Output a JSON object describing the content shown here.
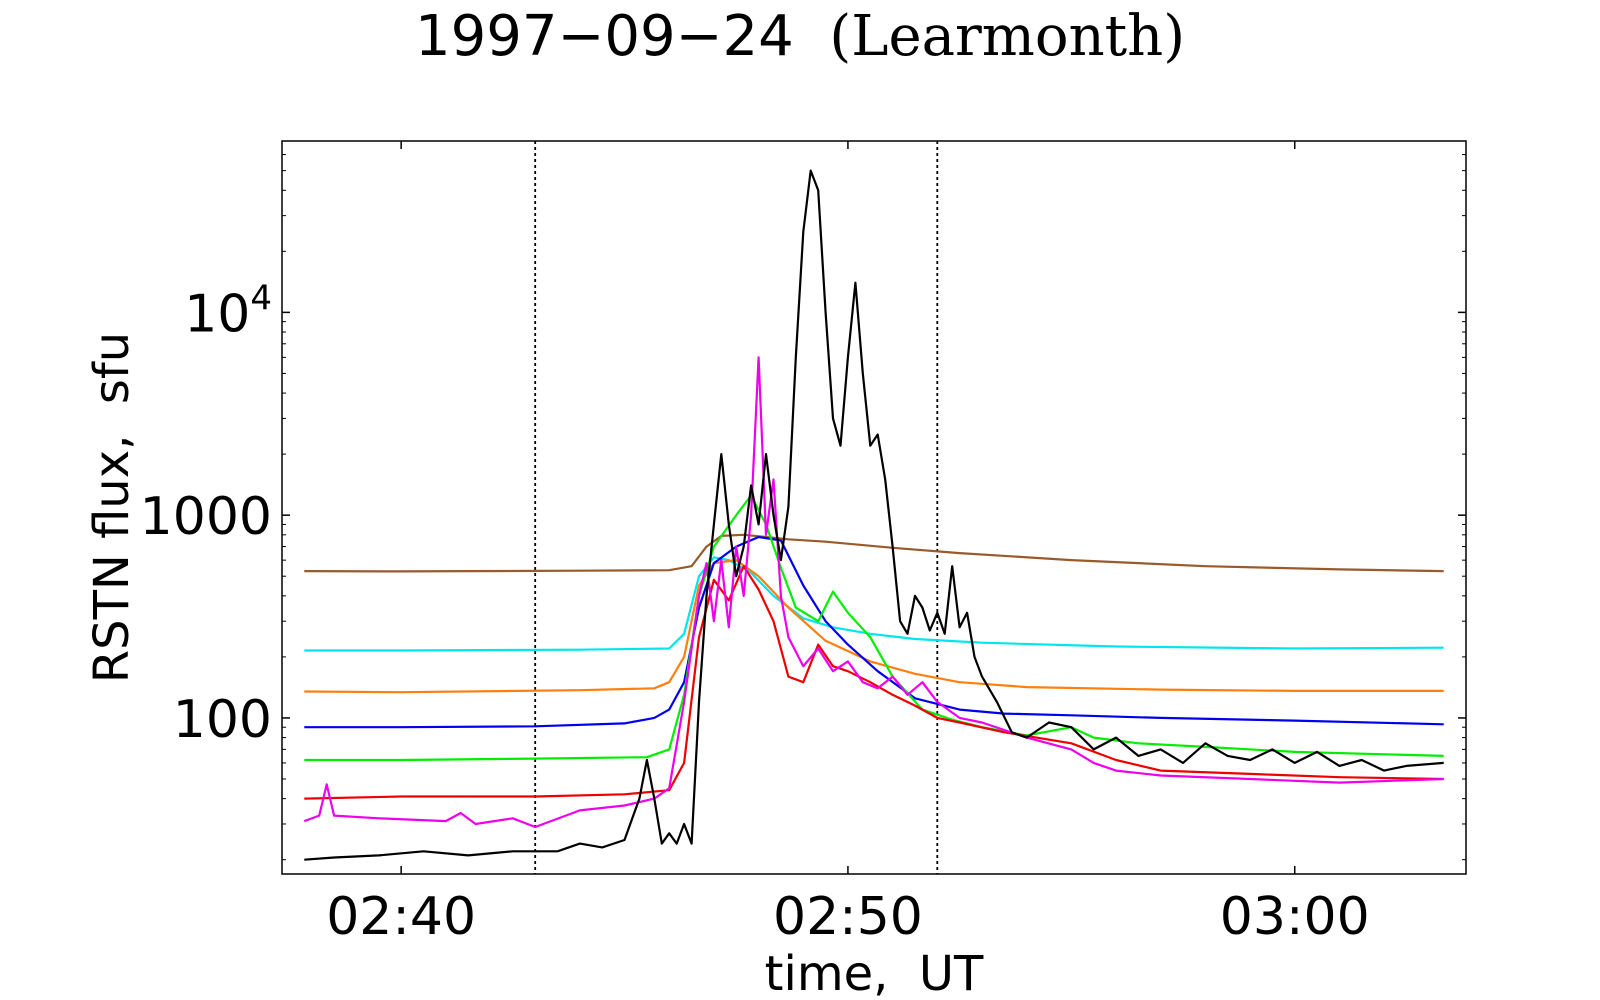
{
  "chart_data": {
    "type": "line",
    "title": "1997−09−24",
    "subtitle": "(Learmonth)",
    "xlabel": "time,  UT",
    "ylabel": "RSTN flux,  sfu",
    "yscale": "log",
    "ylim": [
      17,
      70000
    ],
    "xlim": [
      "02:37:20",
      "03:03:50"
    ],
    "x_ticks": [
      {
        "label": "02:40",
        "t": "02:40:00"
      },
      {
        "label": "02:50",
        "t": "02:50:00"
      },
      {
        "label": "03:00",
        "t": "03:00:00"
      }
    ],
    "y_ticks": [
      {
        "label": "100",
        "value": 100
      },
      {
        "label": "1000",
        "value": 1000
      },
      {
        "label": "10",
        "sup": "4",
        "value": 10000
      }
    ],
    "vlines": [
      "02:43:00",
      "02:52:00"
    ],
    "grid": false,
    "legend": "none",
    "series": [
      {
        "color": "#9a5a2a",
        "points": [
          [
            "02:37:50",
            530
          ],
          [
            "02:40:00",
            528
          ],
          [
            "02:44:00",
            532
          ],
          [
            "02:46:00",
            535
          ],
          [
            "02:46:30",
            560
          ],
          [
            "02:46:50",
            700
          ],
          [
            "02:47:10",
            790
          ],
          [
            "02:47:40",
            800
          ],
          [
            "02:48:10",
            780
          ],
          [
            "02:48:40",
            760
          ],
          [
            "02:49:30",
            740
          ],
          [
            "02:51:00",
            690
          ],
          [
            "02:52:30",
            650
          ],
          [
            "02:55:00",
            600
          ],
          [
            "02:58:00",
            560
          ],
          [
            "03:01:00",
            540
          ],
          [
            "03:03:20",
            530
          ]
        ]
      },
      {
        "color": "#00e5ee",
        "points": [
          [
            "02:37:50",
            215
          ],
          [
            "02:40:00",
            215
          ],
          [
            "02:44:00",
            217
          ],
          [
            "02:46:00",
            220
          ],
          [
            "02:46:20",
            260
          ],
          [
            "02:46:40",
            500
          ],
          [
            "02:47:00",
            620
          ],
          [
            "02:47:20",
            600
          ],
          [
            "02:47:50",
            520
          ],
          [
            "02:48:20",
            400
          ],
          [
            "02:49:00",
            310
          ],
          [
            "02:49:40",
            280
          ],
          [
            "02:50:30",
            260
          ],
          [
            "02:51:30",
            245
          ],
          [
            "02:53:00",
            235
          ],
          [
            "02:56:00",
            225
          ],
          [
            "03:00:00",
            220
          ],
          [
            "03:03:20",
            222
          ]
        ]
      },
      {
        "color": "#ff7f0e",
        "points": [
          [
            "02:37:50",
            135
          ],
          [
            "02:40:00",
            134
          ],
          [
            "02:44:00",
            137
          ],
          [
            "02:45:40",
            140
          ],
          [
            "02:46:00",
            150
          ],
          [
            "02:46:20",
            200
          ],
          [
            "02:46:40",
            450
          ],
          [
            "02:47:00",
            580
          ],
          [
            "02:47:30",
            600
          ],
          [
            "02:48:00",
            500
          ],
          [
            "02:48:40",
            350
          ],
          [
            "02:49:30",
            240
          ],
          [
            "02:50:30",
            190
          ],
          [
            "02:51:30",
            165
          ],
          [
            "02:52:30",
            150
          ],
          [
            "02:54:00",
            142
          ],
          [
            "02:57:00",
            138
          ],
          [
            "03:00:00",
            136
          ],
          [
            "03:03:20",
            136
          ]
        ]
      },
      {
        "color": "#0000ee",
        "points": [
          [
            "02:37:50",
            90
          ],
          [
            "02:40:00",
            90
          ],
          [
            "02:43:00",
            91
          ],
          [
            "02:45:00",
            94
          ],
          [
            "02:45:40",
            100
          ],
          [
            "02:46:00",
            110
          ],
          [
            "02:46:20",
            150
          ],
          [
            "02:46:40",
            350
          ],
          [
            "02:47:00",
            580
          ],
          [
            "02:47:30",
            700
          ],
          [
            "02:48:00",
            780
          ],
          [
            "02:48:30",
            750
          ],
          [
            "02:49:00",
            450
          ],
          [
            "02:49:30",
            300
          ],
          [
            "02:50:00",
            230
          ],
          [
            "02:50:40",
            170
          ],
          [
            "02:51:30",
            125
          ],
          [
            "02:52:30",
            110
          ],
          [
            "02:53:30",
            105
          ],
          [
            "02:55:00",
            103
          ],
          [
            "02:57:00",
            100
          ],
          [
            "03:00:00",
            97
          ],
          [
            "03:03:20",
            93
          ]
        ]
      },
      {
        "color": "#00ee00",
        "points": [
          [
            "02:37:50",
            62
          ],
          [
            "02:40:00",
            62
          ],
          [
            "02:43:00",
            63
          ],
          [
            "02:45:30",
            64
          ],
          [
            "02:46:00",
            70
          ],
          [
            "02:46:20",
            130
          ],
          [
            "02:46:40",
            400
          ],
          [
            "02:47:00",
            700
          ],
          [
            "02:47:30",
            1000
          ],
          [
            "02:47:50",
            1250
          ],
          [
            "02:48:10",
            900
          ],
          [
            "02:48:30",
            550
          ],
          [
            "02:48:50",
            350
          ],
          [
            "02:49:20",
            300
          ],
          [
            "02:49:40",
            420
          ],
          [
            "02:50:00",
            330
          ],
          [
            "02:50:30",
            250
          ],
          [
            "02:51:00",
            160
          ],
          [
            "02:51:40",
            110
          ],
          [
            "02:52:20",
            98
          ],
          [
            "02:53:00",
            90
          ],
          [
            "02:54:00",
            82
          ],
          [
            "02:55:00",
            90
          ],
          [
            "02:55:30",
            80
          ],
          [
            "02:56:30",
            75
          ],
          [
            "02:58:00",
            72
          ],
          [
            "03:00:00",
            68
          ],
          [
            "03:03:20",
            65
          ]
        ]
      },
      {
        "color": "#ee0000",
        "points": [
          [
            "02:37:50",
            40
          ],
          [
            "02:40:00",
            41
          ],
          [
            "02:43:00",
            41
          ],
          [
            "02:45:00",
            42
          ],
          [
            "02:46:00",
            44
          ],
          [
            "02:46:20",
            60
          ],
          [
            "02:46:40",
            250
          ],
          [
            "02:47:00",
            480
          ],
          [
            "02:47:20",
            380
          ],
          [
            "02:47:40",
            560
          ],
          [
            "02:48:00",
            430
          ],
          [
            "02:48:20",
            300
          ],
          [
            "02:48:40",
            160
          ],
          [
            "02:49:00",
            150
          ],
          [
            "02:49:20",
            230
          ],
          [
            "02:49:40",
            180
          ],
          [
            "02:50:00",
            170
          ],
          [
            "02:50:30",
            150
          ],
          [
            "02:51:00",
            130
          ],
          [
            "02:51:30",
            115
          ],
          [
            "02:52:00",
            100
          ],
          [
            "02:52:30",
            95
          ],
          [
            "02:53:30",
            85
          ],
          [
            "02:55:00",
            75
          ],
          [
            "02:56:00",
            62
          ],
          [
            "02:57:00",
            55
          ],
          [
            "02:59:00",
            53
          ],
          [
            "03:01:00",
            51
          ],
          [
            "03:03:20",
            50
          ]
        ]
      },
      {
        "color": "#ee00ee",
        "points": [
          [
            "02:37:50",
            31
          ],
          [
            "02:38:10",
            33
          ],
          [
            "02:38:20",
            47
          ],
          [
            "02:38:30",
            33
          ],
          [
            "02:39:30",
            32
          ],
          [
            "02:41:00",
            31
          ],
          [
            "02:41:20",
            34
          ],
          [
            "02:41:40",
            30
          ],
          [
            "02:42:30",
            32
          ],
          [
            "02:43:00",
            29
          ],
          [
            "02:44:00",
            35
          ],
          [
            "02:45:00",
            37
          ],
          [
            "02:45:40",
            40
          ],
          [
            "02:46:00",
            45
          ],
          [
            "02:46:20",
            120
          ],
          [
            "02:46:40",
            400
          ],
          [
            "02:46:50",
            580
          ],
          [
            "02:47:00",
            300
          ],
          [
            "02:47:10",
            600
          ],
          [
            "02:47:20",
            280
          ],
          [
            "02:47:30",
            700
          ],
          [
            "02:47:40",
            400
          ],
          [
            "02:47:50",
            1000
          ],
          [
            "02:48:00",
            6000
          ],
          [
            "02:48:10",
            800
          ],
          [
            "02:48:20",
            1500
          ],
          [
            "02:48:30",
            400
          ],
          [
            "02:48:40",
            250
          ],
          [
            "02:49:00",
            180
          ],
          [
            "02:49:20",
            220
          ],
          [
            "02:49:40",
            170
          ],
          [
            "02:50:00",
            190
          ],
          [
            "02:50:20",
            150
          ],
          [
            "02:50:40",
            140
          ],
          [
            "02:51:00",
            160
          ],
          [
            "02:51:20",
            130
          ],
          [
            "02:51:40",
            150
          ],
          [
            "02:52:00",
            120
          ],
          [
            "02:52:30",
            100
          ],
          [
            "02:53:00",
            95
          ],
          [
            "02:54:00",
            80
          ],
          [
            "02:55:00",
            70
          ],
          [
            "02:55:30",
            60
          ],
          [
            "02:56:00",
            55
          ],
          [
            "02:57:00",
            52
          ],
          [
            "02:59:00",
            50
          ],
          [
            "03:01:00",
            48
          ],
          [
            "03:03:20",
            50
          ]
        ]
      },
      {
        "color": "#000000",
        "points": [
          [
            "02:37:50",
            20
          ],
          [
            "02:38:30",
            20.5
          ],
          [
            "02:39:30",
            21
          ],
          [
            "02:40:30",
            22
          ],
          [
            "02:41:30",
            21
          ],
          [
            "02:42:30",
            22
          ],
          [
            "02:43:30",
            22
          ],
          [
            "02:44:00",
            24
          ],
          [
            "02:44:30",
            23
          ],
          [
            "02:45:00",
            25
          ],
          [
            "02:45:20",
            40
          ],
          [
            "02:45:30",
            62
          ],
          [
            "02:45:40",
            40
          ],
          [
            "02:45:50",
            24
          ],
          [
            "02:46:00",
            27
          ],
          [
            "02:46:10",
            24
          ],
          [
            "02:46:20",
            30
          ],
          [
            "02:46:30",
            24
          ],
          [
            "02:46:40",
            120
          ],
          [
            "02:46:50",
            400
          ],
          [
            "02:47:00",
            900
          ],
          [
            "02:47:10",
            2000
          ],
          [
            "02:47:20",
            900
          ],
          [
            "02:47:30",
            500
          ],
          [
            "02:47:40",
            700
          ],
          [
            "02:47:50",
            1400
          ],
          [
            "02:48:00",
            900
          ],
          [
            "02:48:10",
            2000
          ],
          [
            "02:48:20",
            1000
          ],
          [
            "02:48:30",
            600
          ],
          [
            "02:48:40",
            1100
          ],
          [
            "02:48:50",
            6000
          ],
          [
            "02:49:00",
            25000
          ],
          [
            "02:49:10",
            50000
          ],
          [
            "02:49:20",
            40000
          ],
          [
            "02:49:30",
            10000
          ],
          [
            "02:49:40",
            3000
          ],
          [
            "02:49:50",
            2200
          ],
          [
            "02:50:00",
            6000
          ],
          [
            "02:50:10",
            14000
          ],
          [
            "02:50:20",
            5000
          ],
          [
            "02:50:30",
            2200
          ],
          [
            "02:50:40",
            2500
          ],
          [
            "02:50:50",
            1500
          ],
          [
            "02:51:00",
            700
          ],
          [
            "02:51:10",
            300
          ],
          [
            "02:51:20",
            260
          ],
          [
            "02:51:30",
            400
          ],
          [
            "02:51:40",
            350
          ],
          [
            "02:51:50",
            270
          ],
          [
            "02:52:00",
            330
          ],
          [
            "02:52:10",
            260
          ],
          [
            "02:52:20",
            560
          ],
          [
            "02:52:30",
            280
          ],
          [
            "02:52:40",
            330
          ],
          [
            "02:52:50",
            200
          ],
          [
            "02:53:00",
            160
          ],
          [
            "02:53:20",
            120
          ],
          [
            "02:53:40",
            85
          ],
          [
            "02:54:00",
            80
          ],
          [
            "02:54:30",
            95
          ],
          [
            "02:55:00",
            90
          ],
          [
            "02:55:30",
            70
          ],
          [
            "02:56:00",
            80
          ],
          [
            "02:56:30",
            65
          ],
          [
            "02:57:00",
            70
          ],
          [
            "02:57:30",
            60
          ],
          [
            "02:58:00",
            75
          ],
          [
            "02:58:30",
            65
          ],
          [
            "02:59:00",
            62
          ],
          [
            "02:59:30",
            70
          ],
          [
            "03:00:00",
            60
          ],
          [
            "03:00:30",
            68
          ],
          [
            "03:01:00",
            58
          ],
          [
            "03:01:30",
            62
          ],
          [
            "03:02:00",
            55
          ],
          [
            "03:02:30",
            58
          ],
          [
            "03:03:20",
            60
          ]
        ]
      }
    ]
  }
}
